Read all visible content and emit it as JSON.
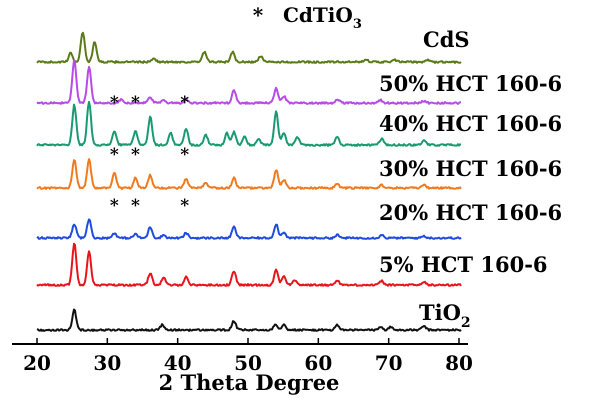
{
  "chart_data": {
    "type": "line",
    "xlabel": "2 Theta Degree",
    "xlim": [
      20,
      80
    ],
    "xticks": [
      "20",
      "30",
      "40",
      "50",
      "60",
      "70",
      "80"
    ],
    "legend_marker": "*",
    "legend_label": "CdTiO3",
    "series": [
      {
        "name": "CdS",
        "color": "#5b7b1a",
        "peaks": [
          [
            24.8,
            9
          ],
          [
            26.5,
            30
          ],
          [
            28.2,
            20
          ],
          [
            36.6,
            4
          ],
          [
            43.8,
            10
          ],
          [
            47.8,
            10
          ],
          [
            51.8,
            6
          ],
          [
            66.8,
            3
          ],
          [
            70.9,
            2
          ],
          [
            75.5,
            2
          ]
        ]
      },
      {
        "name": "50% HCT 160-6",
        "color": "#b84ae6",
        "peaks": [
          [
            25.3,
            43
          ],
          [
            27.4,
            36
          ],
          [
            32.0,
            4
          ],
          [
            36.1,
            6
          ],
          [
            38.0,
            3
          ],
          [
            41.2,
            4
          ],
          [
            48.0,
            13
          ],
          [
            54.0,
            15
          ],
          [
            55.1,
            7
          ],
          [
            62.7,
            4
          ],
          [
            68.8,
            3
          ],
          [
            75.0,
            2
          ]
        ]
      },
      {
        "name": "40% HCT 160-6",
        "color": "#1a9a70",
        "peaks": [
          [
            25.3,
            40
          ],
          [
            27.4,
            44
          ],
          [
            31.0,
            14
          ],
          [
            34.0,
            14
          ],
          [
            36.1,
            28
          ],
          [
            39.0,
            12
          ],
          [
            41.2,
            16
          ],
          [
            44.0,
            10
          ],
          [
            47.0,
            12
          ],
          [
            48.0,
            13
          ],
          [
            49.5,
            8
          ],
          [
            51.5,
            6
          ],
          [
            54.0,
            33
          ],
          [
            55.1,
            12
          ],
          [
            57.0,
            8
          ],
          [
            62.7,
            8
          ],
          [
            69.0,
            6
          ],
          [
            75.0,
            5
          ]
        ]
      },
      {
        "name": "30% HCT 160-6",
        "color": "#f07a1e",
        "peaks": [
          [
            25.3,
            28
          ],
          [
            27.4,
            29
          ],
          [
            31.0,
            15
          ],
          [
            34.0,
            10
          ],
          [
            36.1,
            13
          ],
          [
            41.2,
            9
          ],
          [
            44.0,
            5
          ],
          [
            48.0,
            10
          ],
          [
            54.0,
            18
          ],
          [
            55.1,
            8
          ],
          [
            62.7,
            4
          ],
          [
            69.0,
            3
          ],
          [
            75.0,
            3
          ]
        ]
      },
      {
        "name": "20% HCT 160-6",
        "color": "#1f4be0",
        "peaks": [
          [
            25.3,
            14
          ],
          [
            27.4,
            19
          ],
          [
            31.0,
            5
          ],
          [
            34.0,
            4
          ],
          [
            36.1,
            11
          ],
          [
            38.0,
            3
          ],
          [
            41.2,
            5
          ],
          [
            48.0,
            11
          ],
          [
            54.0,
            14
          ],
          [
            55.1,
            6
          ],
          [
            62.7,
            3
          ],
          [
            69.0,
            3
          ],
          [
            75.0,
            2
          ]
        ]
      },
      {
        "name": "5% HCT 160-6",
        "color": "#e8141c",
        "peaks": [
          [
            25.3,
            42
          ],
          [
            27.4,
            34
          ],
          [
            36.1,
            12
          ],
          [
            38.0,
            7
          ],
          [
            41.2,
            8
          ],
          [
            48.0,
            14
          ],
          [
            54.0,
            15
          ],
          [
            55.1,
            9
          ],
          [
            56.7,
            5
          ],
          [
            62.7,
            5
          ],
          [
            69.0,
            4
          ],
          [
            75.0,
            3
          ]
        ]
      },
      {
        "name": "TiO2",
        "color": "#111111",
        "peaks": [
          [
            25.3,
            20
          ],
          [
            37.8,
            5
          ],
          [
            48.0,
            9
          ],
          [
            53.9,
            6
          ],
          [
            55.1,
            6
          ],
          [
            62.7,
            5
          ],
          [
            68.8,
            3
          ],
          [
            70.3,
            3
          ],
          [
            75.0,
            4
          ]
        ]
      }
    ],
    "series_labels": [
      {
        "text": "CdS",
        "sub": ""
      },
      {
        "text": "50% HCT 160-6",
        "sub": ""
      },
      {
        "text": "40% HCT 160-6",
        "sub": ""
      },
      {
        "text": "30% HCT 160-6",
        "sub": ""
      },
      {
        "text": "20% HCT 160-6",
        "sub": ""
      },
      {
        "text": "5% HCT 160-6",
        "sub": ""
      },
      {
        "text": "TiO",
        "sub": "2"
      }
    ],
    "star_markers": [
      {
        "series": "50% HCT 160-6",
        "x": [
          31.0,
          34.0,
          41.0
        ]
      },
      {
        "series": "30% HCT 160-6",
        "x": [
          31.0,
          34.0,
          41.0
        ]
      },
      {
        "series": "20% HCT 160-6",
        "x": [
          31.0,
          34.0,
          41.0
        ]
      }
    ]
  }
}
